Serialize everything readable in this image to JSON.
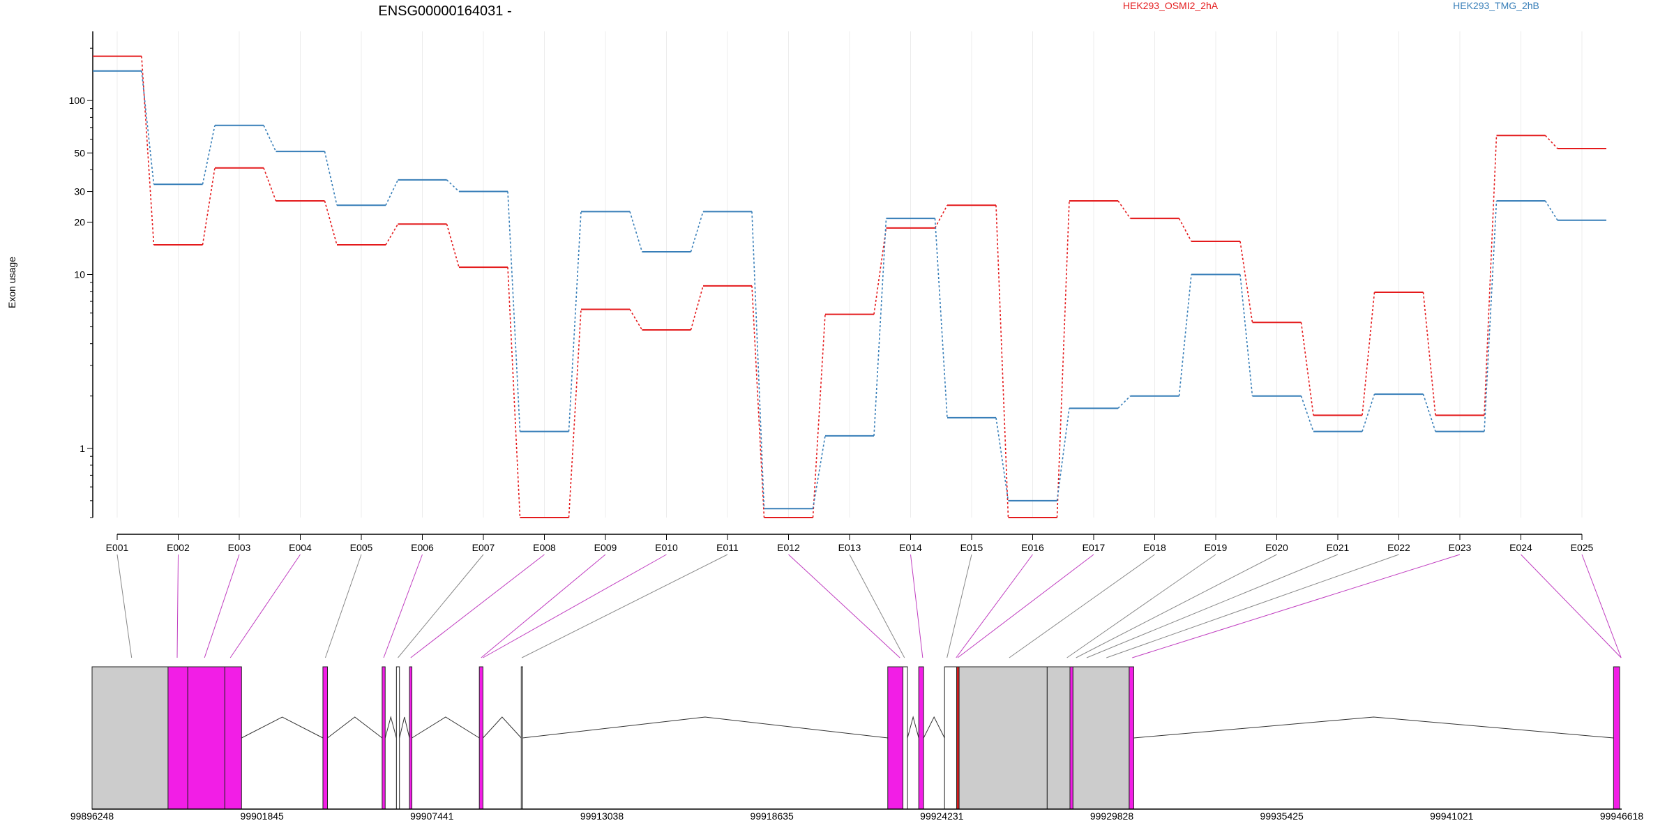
{
  "chart_data": {
    "type": "line",
    "title": "ENSG00000164031 -",
    "ylabel": "Exon usage",
    "yscale": "log",
    "ylim": [
      0.4,
      250
    ],
    "yticks": [
      1,
      10,
      20,
      30,
      50,
      100
    ],
    "ytick_labels": [
      "1",
      "10",
      "20",
      "30",
      "50",
      "100"
    ],
    "grid": "vertical",
    "legend": "top",
    "categories": [
      "E001",
      "E002",
      "E003",
      "E004",
      "E005",
      "E006",
      "E007",
      "E008",
      "E009",
      "E010",
      "E011",
      "E012",
      "E013",
      "E014",
      "E015",
      "E016",
      "E017",
      "E018",
      "E019",
      "E020",
      "E021",
      "E022",
      "E023",
      "E024",
      "E025"
    ],
    "series": [
      {
        "name": "HEK293_OSMI2_2hA",
        "color": "#e41a1c",
        "values": [
          180,
          14.8,
          41,
          26.5,
          14.8,
          19.5,
          11,
          0.4,
          6.3,
          4.8,
          8.6,
          0.4,
          5.9,
          18.5,
          25,
          0.4,
          26.5,
          21,
          15.5,
          5.3,
          1.55,
          7.9,
          1.55,
          63,
          53
        ]
      },
      {
        "name": "HEK293_TMG_2hB",
        "color": "#377eb8",
        "values": [
          148,
          33,
          72,
          51,
          25,
          35,
          30,
          1.25,
          23,
          13.5,
          23,
          0.45,
          1.18,
          21,
          1.5,
          0.5,
          1.7,
          2,
          10,
          2,
          1.25,
          2.05,
          1.25,
          26.5,
          20.5
        ]
      }
    ],
    "gene_model": {
      "coord_labels": [
        "99896248",
        "99901845",
        "99907441",
        "99913038",
        "99918635",
        "99924231",
        "99929828",
        "99935425",
        "99941021",
        "99946618"
      ],
      "coords": [
        99896248,
        99901845,
        99907441,
        99913038,
        99918635,
        99924231,
        99929828,
        99935425,
        99941021,
        99946618
      ],
      "highlight_color": "#f21ee6",
      "default_color": "#cccccc",
      "exons": [
        {
          "start": 99896248,
          "end": 99898750,
          "fill": "#cccccc"
        },
        {
          "start": 99898750,
          "end": 99899400,
          "fill": "#f21ee6"
        },
        {
          "start": 99899400,
          "end": 99900620,
          "fill": "#f21ee6"
        },
        {
          "start": 99900620,
          "end": 99901170,
          "fill": "#f21ee6"
        },
        {
          "start": 99903850,
          "end": 99904000,
          "fill": "#f21ee6"
        },
        {
          "start": 99905800,
          "end": 99905900,
          "fill": "#f21ee6"
        },
        {
          "start": 99906270,
          "end": 99906370,
          "fill": "#ffffff"
        },
        {
          "start": 99906700,
          "end": 99906780,
          "fill": "#f21ee6"
        },
        {
          "start": 99909000,
          "end": 99909120,
          "fill": "#f21ee6"
        },
        {
          "start": 99910380,
          "end": 99910420,
          "fill": "#ffffff"
        },
        {
          "start": 99922450,
          "end": 99922950,
          "fill": "#f21ee6"
        },
        {
          "start": 99922950,
          "end": 99923100,
          "fill": "#ffffff"
        },
        {
          "start": 99923470,
          "end": 99923630,
          "fill": "#f21ee6"
        },
        {
          "start": 99924320,
          "end": 99924720,
          "fill": "#ffffff"
        },
        {
          "start": 99924720,
          "end": 99924800,
          "fill": "#e41a1c"
        },
        {
          "start": 99924800,
          "end": 99927700,
          "fill": "#cccccc"
        },
        {
          "start": 99927700,
          "end": 99928450,
          "fill": "#cccccc"
        },
        {
          "start": 99928450,
          "end": 99928550,
          "fill": "#f21ee6"
        },
        {
          "start": 99928550,
          "end": 99930400,
          "fill": "#cccccc"
        },
        {
          "start": 99930400,
          "end": 99930550,
          "fill": "#f21ee6"
        },
        {
          "start": 99946350,
          "end": 99946550,
          "fill": "#f21ee6"
        }
      ],
      "connector_targets": [
        99897550,
        99899050,
        99899950,
        99900800,
        99903930,
        99905850,
        99906320,
        99906740,
        99909060,
        99909120,
        99910400,
        99922850,
        99923000,
        99923600,
        99924400,
        99924700,
        99924750,
        99926450,
        99928350,
        99928650,
        99929000,
        99929650,
        99930500,
        99946600,
        99946600
      ],
      "connector_colors": [
        "#888888",
        "#c03dc0",
        "#c03dc0",
        "#c03dc0",
        "#888888",
        "#c03dc0",
        "#888888",
        "#c03dc0",
        "#c03dc0",
        "#c03dc0",
        "#888888",
        "#c03dc0",
        "#888888",
        "#c03dc0",
        "#888888",
        "#c03dc0",
        "#c03dc0",
        "#888888",
        "#888888",
        "#888888",
        "#888888",
        "#888888",
        "#c03dc0",
        "#c03dc0",
        "#c03dc0"
      ]
    }
  }
}
